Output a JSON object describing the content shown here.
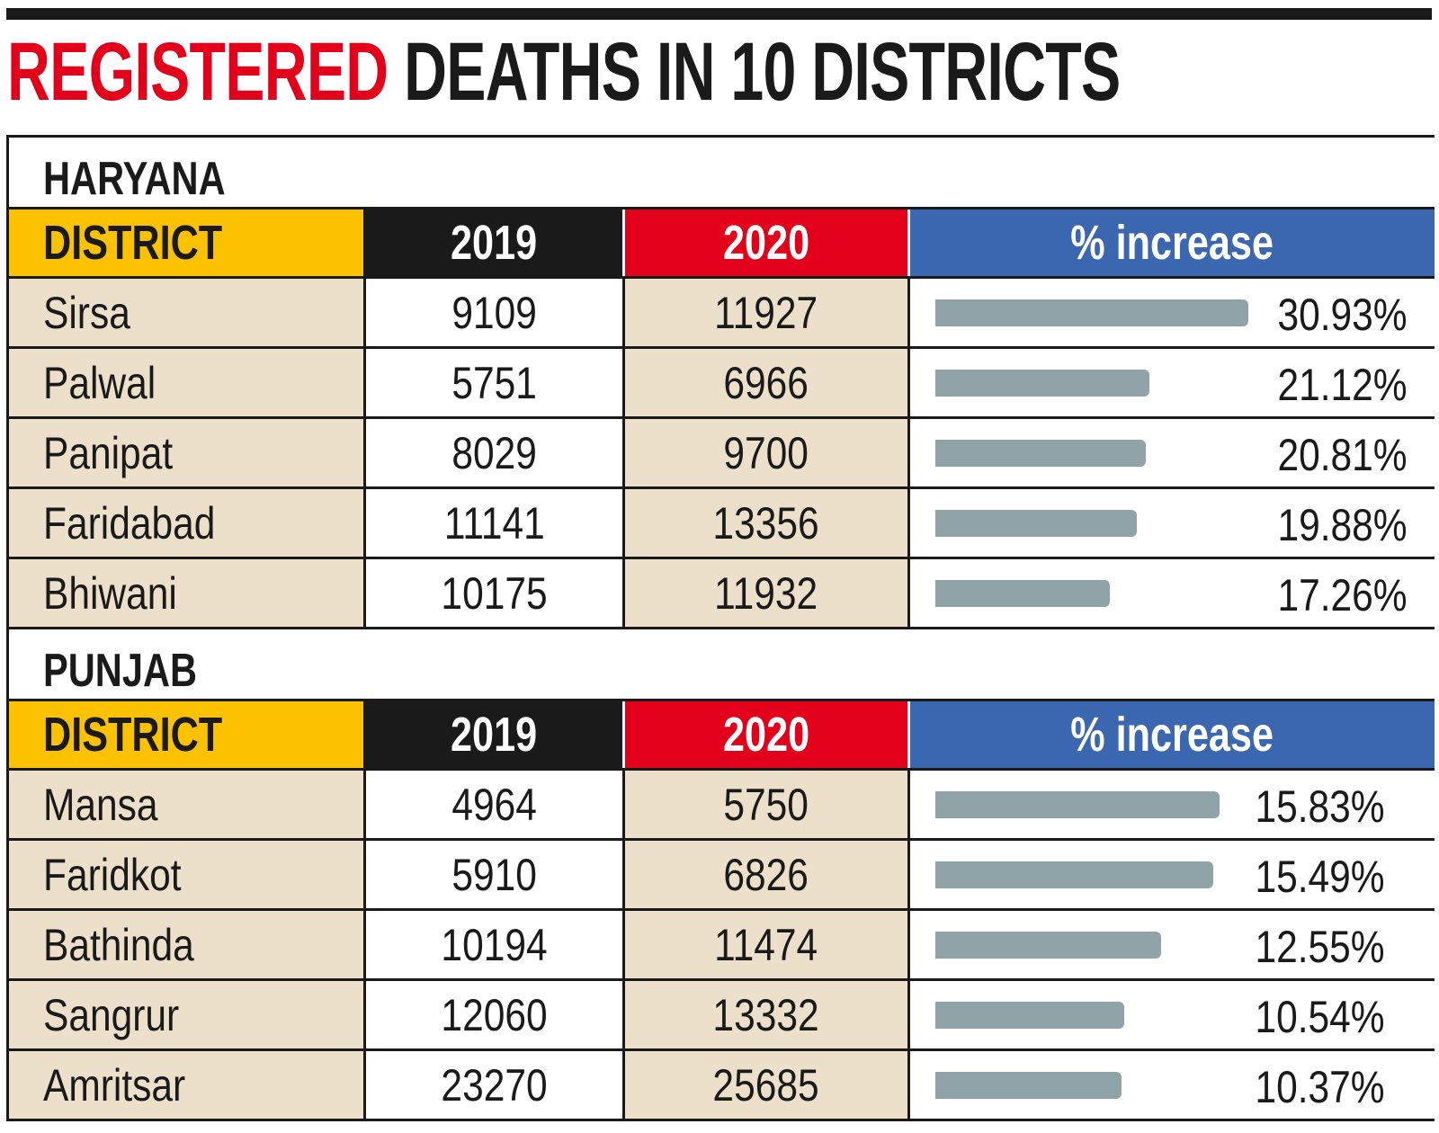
{
  "chart_data": {
    "type": "table",
    "title": {
      "highlight": "REGISTERED",
      "rest": " DEATHS IN 10 DISTRICTS"
    },
    "colors": {
      "district_header": "#fcc200",
      "y2019_header": "#1a1a1a",
      "y2020_header": "#e2001a",
      "increase_header": "#3a67b0",
      "bar": "#8fa3a9",
      "shade": "#ede0cb"
    },
    "columns": [
      "DISTRICT",
      "2019",
      "2020",
      "% increase"
    ],
    "sections": [
      {
        "state": "HARYANA",
        "rows": [
          {
            "district": "Sirsa",
            "y2019": "9109",
            "y2020": "11927",
            "increase": 30.93,
            "increase_label": "30.93%"
          },
          {
            "district": "Palwal",
            "y2019": "5751",
            "y2020": "6966",
            "increase": 21.12,
            "increase_label": "21.12%"
          },
          {
            "district": "Panipat",
            "y2019": "8029",
            "y2020": "9700",
            "increase": 20.81,
            "increase_label": "20.81%"
          },
          {
            "district": "Faridabad",
            "y2019": "11141",
            "y2020": "13356",
            "increase": 19.88,
            "increase_label": "19.88%"
          },
          {
            "district": "Bhiwani",
            "y2019": "10175",
            "y2020": "11932",
            "increase": 17.26,
            "increase_label": "17.26%"
          }
        ]
      },
      {
        "state": "PUNJAB",
        "rows": [
          {
            "district": "Mansa",
            "y2019": "4964",
            "y2020": "5750",
            "increase": 15.83,
            "increase_label": "15.83%"
          },
          {
            "district": "Faridkot",
            "y2019": "5910",
            "y2020": "6826",
            "increase": 15.49,
            "increase_label": "15.49%"
          },
          {
            "district": "Bathinda",
            "y2019": "10194",
            "y2020": "11474",
            "increase": 12.55,
            "increase_label": "12.55%"
          },
          {
            "district": "Sangrur",
            "y2019": "12060",
            "y2020": "13332",
            "increase": 10.54,
            "increase_label": "10.54%"
          },
          {
            "district": "Amritsar",
            "y2019": "23270",
            "y2020": "25685",
            "increase": 10.37,
            "increase_label": "10.37%"
          }
        ]
      }
    ]
  }
}
